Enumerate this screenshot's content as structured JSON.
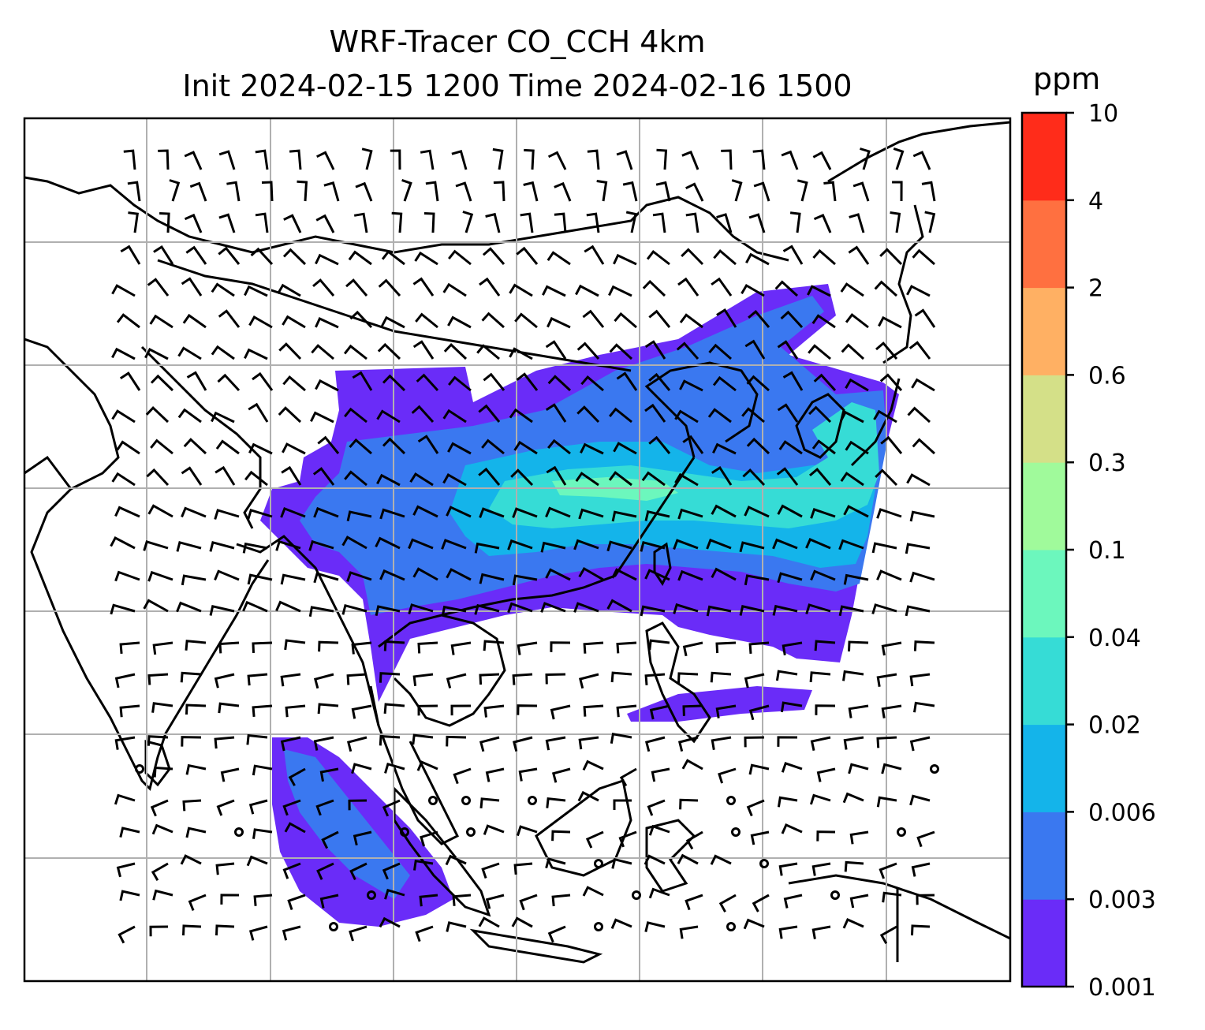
{
  "title": "WRF-Tracer CO_CCH 4km",
  "subtitle": "Init 2024-02-15 1200 Time 2024-02-16 1500",
  "colorbar": {
    "unit": "ppm",
    "levels": [
      "0.001",
      "0.003",
      "0.006",
      "0.02",
      "0.04",
      "0.1",
      "0.3",
      "0.6",
      "2",
      "4",
      "10"
    ],
    "colors": [
      "#6a2cf8",
      "#3a78f0",
      "#14b4ea",
      "#36dcd6",
      "#6cf7bd",
      "#a0fa9b",
      "#d4e088",
      "#ffb063",
      "#ff7040",
      "#ff2c1a"
    ]
  },
  "chart_data": {
    "type": "heatmap",
    "title": "WRF-Tracer CO_CCH 4km",
    "subtitle": "Init 2024-02-15 1200 Time 2024-02-16 1500",
    "variable": "CO_CCH tracer concentration",
    "unit": "ppm",
    "colorbar_levels": [
      0.001,
      0.003,
      0.006,
      0.02,
      0.04,
      0.1,
      0.3,
      0.6,
      2,
      4,
      10
    ],
    "overlay": "wind barbs",
    "basemap": "coastlines and country borders",
    "grid": true,
    "legend": "colorbar right"
  }
}
